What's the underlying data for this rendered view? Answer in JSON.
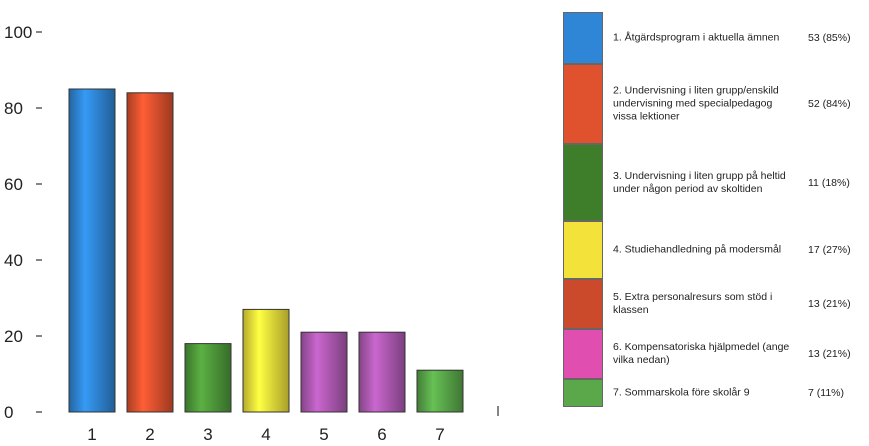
{
  "chart_data": {
    "type": "bar",
    "categories": [
      "1",
      "2",
      "3",
      "4",
      "5",
      "6",
      "7"
    ],
    "values": [
      85,
      84,
      18,
      27,
      21,
      21,
      11
    ],
    "ylim": [
      0,
      100
    ],
    "yticks": [
      "0",
      "20",
      "40",
      "60",
      "80",
      "100"
    ],
    "colors": [
      "#2f86d6",
      "#e0522e",
      "#4f9a3a",
      "#f2e23a",
      "#b05ab4",
      "#b05ab4",
      "#5aa84a"
    ],
    "grid": false,
    "legend_position": "right",
    "legend": [
      {
        "label": "1. Åtgärdsprogram i aktuella ämnen",
        "value": "53 (85%)",
        "color": "#2f86d6"
      },
      {
        "label": "2. Undervisning i liten grupp/enskild undervisning med specialpedagog vissa lektioner",
        "value": "52 (84%)",
        "color": "#e0522e"
      },
      {
        "label": "3. Undervisning i liten grupp på heltid under någon period av skoltiden",
        "value": "11 (18%)",
        "color": "#3e7e2a"
      },
      {
        "label": "4. Studiehandledning på modersmål",
        "value": "17 (27%)",
        "color": "#f2e23a"
      },
      {
        "label": "5. Extra personalresurs som stöd i klassen",
        "value": "13 (21%)",
        "color": "#cc4a2c"
      },
      {
        "label": "6. Kompensatoriska hjälpmedel (ange vilka nedan)",
        "value": "13 (21%)",
        "color": "#e04fb0"
      },
      {
        "label": "7. Sommarskola före skolår 9",
        "value": "7 (11%)",
        "color": "#5aa84a"
      }
    ]
  }
}
